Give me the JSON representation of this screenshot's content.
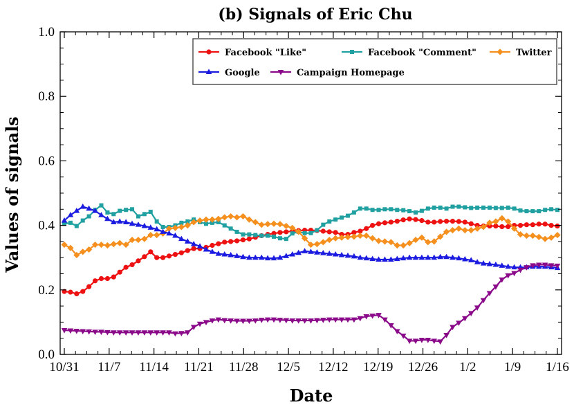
{
  "chart_data": {
    "type": "line",
    "title": "(b) Signals of Eric Chu",
    "xlabel": "Date",
    "ylabel": "Values of signals",
    "ylim": [
      0.0,
      1.0
    ],
    "yticks": [
      "0.0",
      "0.2",
      "0.4",
      "0.6",
      "0.8",
      "1.0"
    ],
    "xticks": [
      "10/31",
      "11/7",
      "11/14",
      "11/21",
      "11/28",
      "12/5",
      "12/12",
      "12/19",
      "12/26",
      "1/2",
      "1/9",
      "1/16"
    ],
    "x_start": "10/31",
    "x_end": "1/16",
    "grid": false,
    "legend_position": "top-right",
    "series": [
      {
        "name": "Facebook \"Like\"",
        "color": "#ee1111",
        "marker": "circle",
        "values": [
          0.195,
          0.193,
          0.188,
          0.195,
          0.21,
          0.228,
          0.235,
          0.235,
          0.24,
          0.255,
          0.27,
          0.278,
          0.29,
          0.303,
          0.318,
          0.3,
          0.3,
          0.305,
          0.31,
          0.315,
          0.322,
          0.328,
          0.328,
          0.332,
          0.338,
          0.343,
          0.348,
          0.35,
          0.352,
          0.355,
          0.358,
          0.363,
          0.368,
          0.372,
          0.375,
          0.378,
          0.38,
          0.382,
          0.384,
          0.385,
          0.385,
          0.384,
          0.382,
          0.38,
          0.378,
          0.372,
          0.372,
          0.378,
          0.382,
          0.39,
          0.4,
          0.405,
          0.408,
          0.41,
          0.413,
          0.417,
          0.42,
          0.418,
          0.415,
          0.41,
          0.41,
          0.412,
          0.413,
          0.413,
          0.412,
          0.41,
          0.405,
          0.4,
          0.398,
          0.398,
          0.398,
          0.396,
          0.396,
          0.4,
          0.4,
          0.402,
          0.402,
          0.404,
          0.404,
          0.4,
          0.398
        ]
      },
      {
        "name": "Facebook \"Comment\"",
        "color": "#20a0a0",
        "marker": "square",
        "values": [
          0.405,
          0.408,
          0.398,
          0.415,
          0.428,
          0.448,
          0.462,
          0.44,
          0.435,
          0.445,
          0.448,
          0.45,
          0.428,
          0.435,
          0.442,
          0.412,
          0.395,
          0.395,
          0.4,
          0.408,
          0.412,
          0.418,
          0.41,
          0.405,
          0.408,
          0.41,
          0.4,
          0.39,
          0.38,
          0.372,
          0.372,
          0.37,
          0.368,
          0.368,
          0.365,
          0.36,
          0.358,
          0.375,
          0.38,
          0.376,
          0.376,
          0.385,
          0.402,
          0.412,
          0.418,
          0.424,
          0.43,
          0.44,
          0.452,
          0.452,
          0.448,
          0.448,
          0.45,
          0.45,
          0.448,
          0.447,
          0.444,
          0.44,
          0.445,
          0.452,
          0.455,
          0.455,
          0.452,
          0.458,
          0.458,
          0.456,
          0.454,
          0.455,
          0.455,
          0.455,
          0.454,
          0.454,
          0.455,
          0.452,
          0.446,
          0.444,
          0.444,
          0.444,
          0.448,
          0.45,
          0.448
        ]
      },
      {
        "name": "Twitter",
        "color": "#f5901e",
        "marker": "diamond",
        "values": [
          0.34,
          0.33,
          0.308,
          0.318,
          0.325,
          0.34,
          0.34,
          0.338,
          0.342,
          0.345,
          0.34,
          0.355,
          0.355,
          0.358,
          0.37,
          0.37,
          0.375,
          0.39,
          0.392,
          0.395,
          0.4,
          0.41,
          0.415,
          0.418,
          0.418,
          0.42,
          0.425,
          0.428,
          0.425,
          0.428,
          0.418,
          0.41,
          0.402,
          0.404,
          0.405,
          0.404,
          0.398,
          0.392,
          0.38,
          0.36,
          0.34,
          0.342,
          0.348,
          0.355,
          0.36,
          0.362,
          0.364,
          0.365,
          0.368,
          0.368,
          0.36,
          0.352,
          0.35,
          0.348,
          0.338,
          0.338,
          0.345,
          0.355,
          0.362,
          0.348,
          0.35,
          0.365,
          0.38,
          0.385,
          0.39,
          0.385,
          0.385,
          0.39,
          0.395,
          0.408,
          0.412,
          0.422,
          0.412,
          0.39,
          0.372,
          0.368,
          0.368,
          0.364,
          0.358,
          0.362,
          0.37
        ]
      },
      {
        "name": "Google",
        "color": "#1c1ce0",
        "marker": "triangle-up",
        "values": [
          0.415,
          0.432,
          0.445,
          0.458,
          0.452,
          0.445,
          0.432,
          0.42,
          0.41,
          0.412,
          0.41,
          0.405,
          0.402,
          0.398,
          0.393,
          0.388,
          0.38,
          0.375,
          0.368,
          0.358,
          0.35,
          0.342,
          0.335,
          0.325,
          0.318,
          0.312,
          0.31,
          0.308,
          0.305,
          0.302,
          0.3,
          0.3,
          0.3,
          0.298,
          0.298,
          0.3,
          0.305,
          0.31,
          0.315,
          0.32,
          0.318,
          0.316,
          0.314,
          0.312,
          0.31,
          0.308,
          0.306,
          0.304,
          0.3,
          0.298,
          0.296,
          0.294,
          0.294,
          0.294,
          0.296,
          0.298,
          0.3,
          0.3,
          0.3,
          0.3,
          0.3,
          0.302,
          0.302,
          0.3,
          0.298,
          0.295,
          0.292,
          0.286,
          0.282,
          0.28,
          0.278,
          0.275,
          0.272,
          0.27,
          0.27,
          0.27,
          0.272,
          0.272,
          0.272,
          0.27,
          0.268
        ]
      },
      {
        "name": "Campaign Homepage",
        "color": "#8a0a8a",
        "marker": "triangle-down",
        "values": [
          0.075,
          0.074,
          0.073,
          0.072,
          0.071,
          0.07,
          0.07,
          0.069,
          0.068,
          0.068,
          0.068,
          0.068,
          0.068,
          0.068,
          0.068,
          0.068,
          0.068,
          0.068,
          0.065,
          0.066,
          0.068,
          0.085,
          0.095,
          0.1,
          0.105,
          0.108,
          0.106,
          0.105,
          0.104,
          0.104,
          0.104,
          0.105,
          0.107,
          0.108,
          0.108,
          0.107,
          0.106,
          0.105,
          0.105,
          0.105,
          0.105,
          0.106,
          0.107,
          0.108,
          0.108,
          0.108,
          0.108,
          0.108,
          0.112,
          0.118,
          0.12,
          0.122,
          0.108,
          0.09,
          0.072,
          0.058,
          0.042,
          0.042,
          0.045,
          0.045,
          0.042,
          0.04,
          0.06,
          0.085,
          0.098,
          0.112,
          0.128,
          0.145,
          0.168,
          0.19,
          0.21,
          0.232,
          0.245,
          0.252,
          0.262,
          0.27,
          0.276,
          0.278,
          0.278,
          0.276,
          0.275
        ]
      }
    ]
  }
}
